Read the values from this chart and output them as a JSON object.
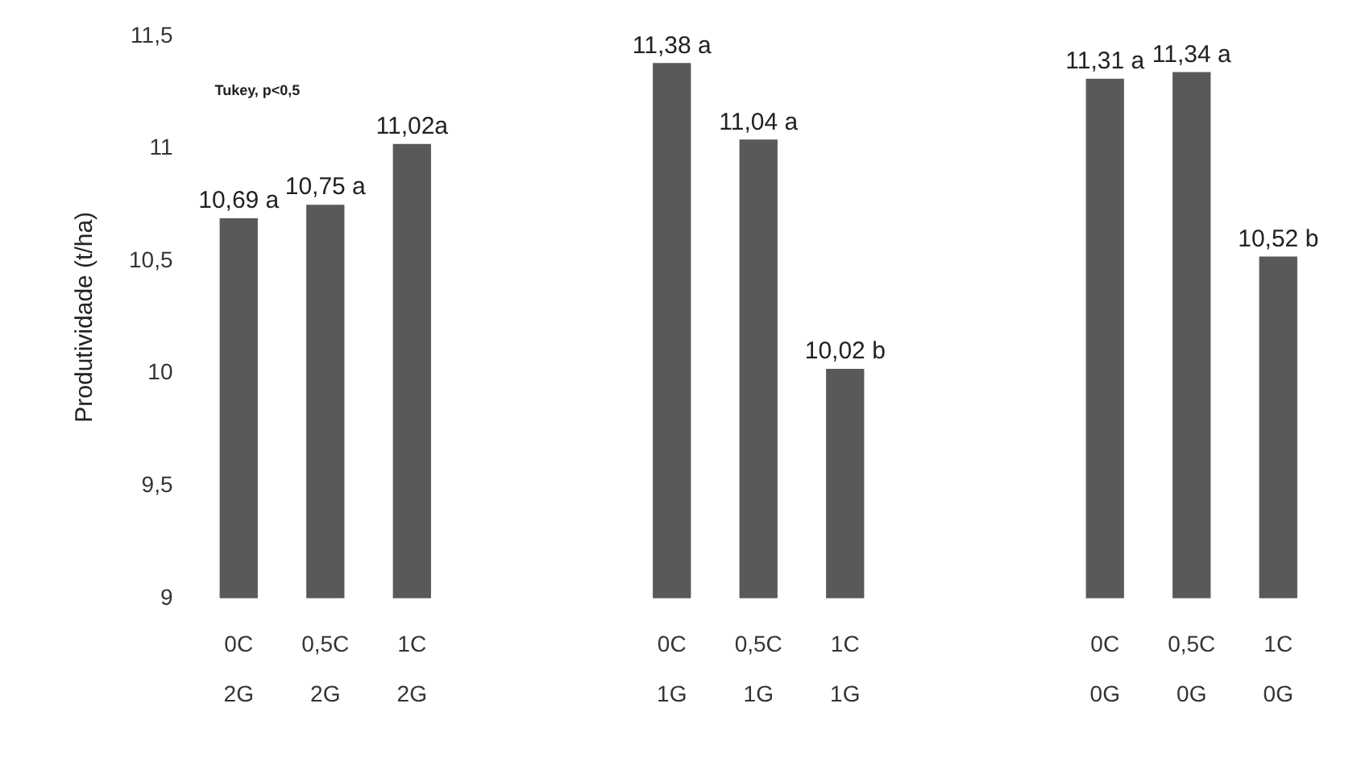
{
  "chart_data": {
    "type": "bar",
    "ylabel": "Produtividade (t/ha)",
    "categories": [
      "0C\n2G",
      "0,5C\n2G",
      "1C\n2G",
      null,
      null,
      "0C\n1G",
      "0,5C\n1G",
      "1C\n1G",
      null,
      null,
      "0C\n0G",
      "0,5C\n0G",
      "1C\n0G"
    ],
    "values": [
      10.69,
      10.75,
      11.02,
      null,
      null,
      11.38,
      11.04,
      10.02,
      null,
      null,
      11.31,
      11.34,
      10.52
    ],
    "value_labels": [
      "10,69 a",
      "10,75 a",
      "11,02a",
      null,
      null,
      "11,38 a",
      "11,04 a",
      "10,02 b",
      null,
      null,
      "11,31 a",
      "11,34 a",
      "10,52 b"
    ],
    "color": "#595959",
    "ylim": [
      9,
      11.5
    ],
    "yticks": [
      {
        "value": 9,
        "label": "9"
      },
      {
        "value": 9.5,
        "label": "9,5"
      },
      {
        "value": 10,
        "label": "10"
      },
      {
        "value": 10.5,
        "label": "10,5"
      },
      {
        "value": 11,
        "label": "11"
      },
      {
        "value": 11.5,
        "label": "11,5"
      }
    ],
    "grid": false,
    "legend": false,
    "annotations": [
      "Tukey, p<0,5"
    ]
  }
}
